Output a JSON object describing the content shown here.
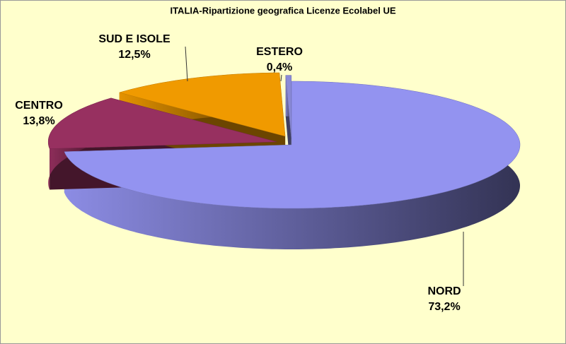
{
  "chart_data": {
    "type": "pie",
    "title": "ITALIA-Ripartizione geografica Licenze Ecolabel UE",
    "categories": [
      "NORD",
      "CENTRO",
      "SUD E ISOLE",
      "ESTERO"
    ],
    "values": [
      73.2,
      13.8,
      12.5,
      0.4
    ],
    "value_labels": [
      "73,2%",
      "13,8%",
      "12,5%",
      "0,4%"
    ],
    "colors": [
      "#9393f0",
      "#973060",
      "#f09a00",
      "#8a8ad8"
    ]
  }
}
